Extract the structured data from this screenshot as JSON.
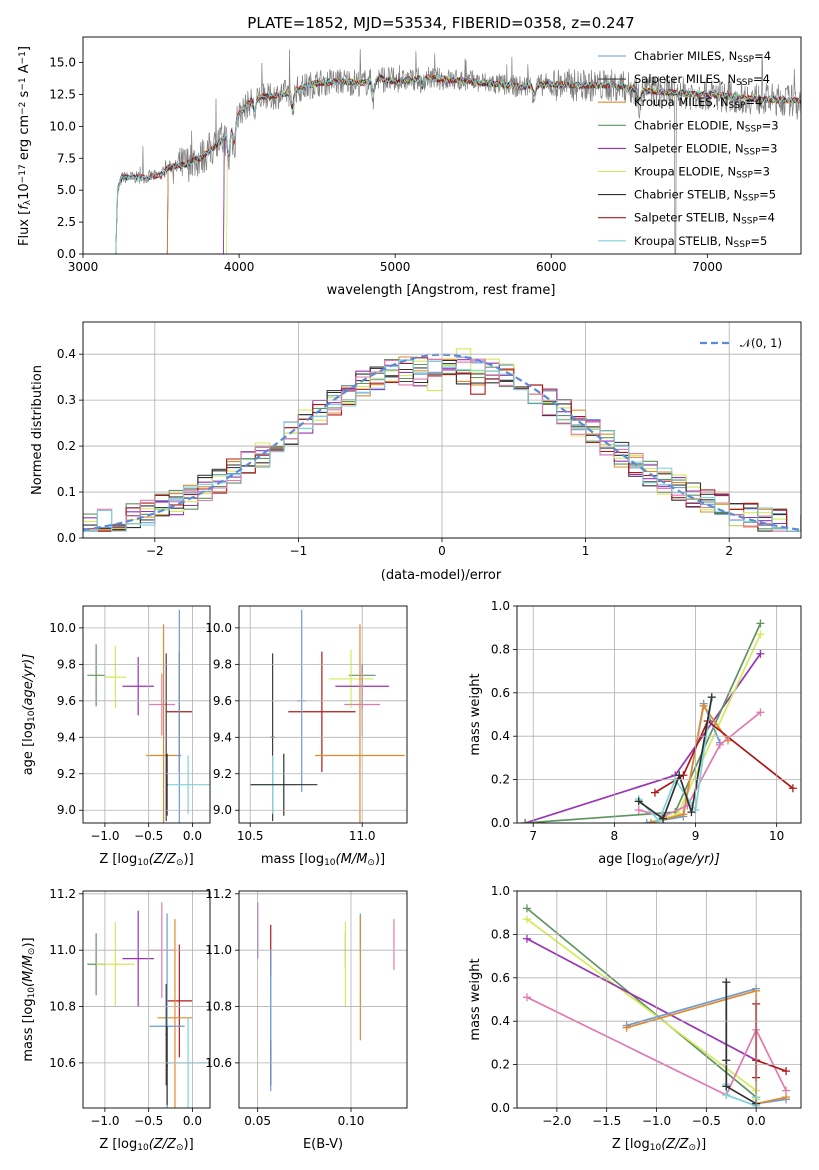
{
  "colors": {
    "Chabrier MILES": "#6a9bd8",
    "Salpeter MILES": "#404040",
    "Kroupa MILES": "#e08a2c",
    "Chabrier ELODIE": "#5f9460",
    "Salpeter ELODIE": "#9933b5",
    "Kroupa ELODIE": "#d4ea5a",
    "Chabrier STELIB": "#303030",
    "Salpeter STELIB": "#b01818",
    "Kroupa STELIB": "#7dd4d8",
    "stelib_pink": "#e37aaf",
    "data": "#808080",
    "normal": "#5b8bd6"
  },
  "chart_data": [
    {
      "id": "spectrum",
      "type": "line",
      "title": "PLATE=1852, MJD=53534, FIBERID=0358, z=0.247",
      "xlabel": "wavelength [Angstrom, rest frame]",
      "ylabel_parts": [
        "Flux [",
        "f",
        "λ",
        "10",
        "−17",
        " erg cm",
        "−2",
        " s",
        "−1",
        " A",
        "−1",
        "]"
      ],
      "xlim": [
        3000,
        7600
      ],
      "ylim": [
        0,
        17
      ],
      "xticks": [
        3000,
        4000,
        5000,
        6000,
        7000
      ],
      "yticks": [
        "0.0",
        "2.5",
        "5.0",
        "7.5",
        "10.0",
        "12.5",
        "15.0"
      ],
      "ytick_values": [
        0,
        2.5,
        5,
        7.5,
        10,
        12.5,
        15
      ],
      "legend": [
        {
          "name": "Chabrier MILES",
          "nssp": "4"
        },
        {
          "name": "Salpeter MILES",
          "nssp": "4"
        },
        {
          "name": "Kroupa MILES",
          "nssp": "4"
        },
        {
          "name": "Chabrier ELODIE",
          "nssp": "3"
        },
        {
          "name": "Salpeter ELODIE",
          "nssp": "3"
        },
        {
          "name": "Kroupa ELODIE",
          "nssp": "3"
        },
        {
          "name": "Chabrier STELIB",
          "nssp": "5"
        },
        {
          "name": "Salpeter STELIB",
          "nssp": "4"
        },
        {
          "name": "Kroupa STELIB",
          "nssp": "5"
        }
      ],
      "legend_prefix": "N",
      "legend_sub": "SSP",
      "legend_position": "upper-right",
      "continuum": [
        [
          3210,
          0
        ],
        [
          3220,
          5
        ],
        [
          3250,
          6
        ],
        [
          3300,
          6
        ],
        [
          3400,
          6
        ],
        [
          3500,
          6.2
        ],
        [
          3550,
          6.8
        ],
        [
          3650,
          7
        ],
        [
          3750,
          7.5
        ],
        [
          3850,
          8.5
        ],
        [
          3900,
          9
        ],
        [
          3950,
          10
        ],
        [
          4000,
          11
        ],
        [
          4100,
          12.3
        ],
        [
          4200,
          12.3
        ],
        [
          4300,
          12.6
        ],
        [
          4400,
          13
        ],
        [
          4500,
          13.4
        ],
        [
          4600,
          13.5
        ],
        [
          4700,
          13.5
        ],
        [
          4800,
          13.4
        ],
        [
          4900,
          13.8
        ],
        [
          5000,
          13.5
        ],
        [
          5200,
          13.8
        ],
        [
          5500,
          13.5
        ],
        [
          5800,
          13.1
        ],
        [
          6000,
          13.3
        ],
        [
          6200,
          13.2
        ],
        [
          6400,
          13.2
        ],
        [
          6600,
          12.8
        ],
        [
          6800,
          12.6
        ],
        [
          7000,
          12.5
        ],
        [
          7200,
          12.3
        ],
        [
          7400,
          12.1
        ],
        [
          7600,
          12.0
        ]
      ]
    },
    {
      "id": "residuals",
      "type": "step",
      "xlabel": "(data-model)/error",
      "ylabel": "Normed distribution",
      "xlim": [
        -2.5,
        2.5
      ],
      "ylim": [
        0,
        0.47
      ],
      "xticks": [
        "−2",
        "−1",
        "0",
        "1",
        "2"
      ],
      "xtick_values": [
        -2,
        -1,
        0,
        1,
        2
      ],
      "yticks": [
        "0.0",
        "0.1",
        "0.2",
        "0.3",
        "0.4"
      ],
      "ytick_values": [
        0,
        0.1,
        0.2,
        0.3,
        0.4
      ],
      "legend": [
        {
          "name": "𝒩(0, 1)"
        }
      ],
      "legend_position": "upper-right",
      "grid": true
    },
    {
      "id": "age_vs_Z",
      "type": "errorbar",
      "xlabel_parts": [
        "Z [log",
        "10",
        "(Z/Z",
        "⊙",
        ")]"
      ],
      "ylabel_parts": [
        "age  [log",
        "10",
        "(age/yr)]"
      ],
      "xlim": [
        -1.25,
        0.2
      ],
      "ylim": [
        8.93,
        10.12
      ],
      "xticks": [
        "−1.0",
        "−0.5",
        "0.0"
      ],
      "xtick_values": [
        -1.0,
        -0.5,
        0.0
      ],
      "yticks": [
        "9.0",
        "9.2",
        "9.4",
        "9.6",
        "9.8",
        "10.0"
      ],
      "ytick_values": [
        9.0,
        9.2,
        9.4,
        9.6,
        9.8,
        10.0
      ],
      "points": [
        {
          "c": "Chabrier ELODIE",
          "x": -1.1,
          "y": 9.74,
          "xerr": 0.1,
          "yerr": 0.17
        },
        {
          "c": "Kroupa ELODIE",
          "x": -0.88,
          "y": 9.73,
          "xerr": 0.12,
          "yerr": 0.17
        },
        {
          "c": "Salpeter ELODIE",
          "x": -0.62,
          "y": 9.68,
          "xerr": 0.18,
          "yerr": 0.16
        },
        {
          "c": "stelib_pink",
          "x": -0.35,
          "y": 9.58,
          "xerr": 0.15,
          "yerr": 0.17
        },
        {
          "c": "Salpeter STELIB",
          "x": -0.15,
          "y": 9.54,
          "xerr": 0.15,
          "yerr": 0.33
        },
        {
          "c": "Kroupa MILES",
          "x": -0.33,
          "y": 9.3,
          "xerr": 0.2,
          "yerr": 0.72
        },
        {
          "c": "Chabrier MILES",
          "x": -0.15,
          "y": 9.3,
          "xerr": 0.02,
          "yerr": 0.8
        },
        {
          "c": "Salpeter MILES",
          "x": -0.3,
          "y": 9.4,
          "xerr": 0.01,
          "yerr": 0.46
        },
        {
          "c": "Kroupa STELIB",
          "x": -0.05,
          "y": 9.14,
          "xerr": 0.25,
          "yerr": 0.16
        },
        {
          "c": "Chabrier STELIB",
          "x": -0.29,
          "y": 9.14,
          "xerr": 0.01,
          "yerr": 0.17
        }
      ]
    },
    {
      "id": "age_vs_mass",
      "type": "errorbar",
      "xlabel_parts": [
        "mass [log",
        "10",
        "(M/M",
        "⊙",
        ")]"
      ],
      "xlim": [
        10.45,
        11.2
      ],
      "ylim": [
        8.93,
        10.12
      ],
      "xticks": [
        "10.5",
        "11.0"
      ],
      "xtick_values": [
        10.5,
        11.0
      ],
      "yticks": [
        "9.0",
        "9.2",
        "9.4",
        "9.6",
        "9.8",
        "10.0"
      ],
      "ytick_values": [
        9.0,
        9.2,
        9.4,
        9.6,
        9.8,
        10.0
      ],
      "points": [
        {
          "c": "Chabrier ELODIE",
          "x": 11.0,
          "y": 9.74,
          "xerr": 0.06,
          "yerr": 0.06
        },
        {
          "c": "Kroupa ELODIE",
          "x": 10.95,
          "y": 9.72,
          "xerr": 0.1,
          "yerr": 0.16
        },
        {
          "c": "Salpeter ELODIE",
          "x": 11.0,
          "y": 9.68,
          "xerr": 0.12,
          "yerr": 0.12
        },
        {
          "c": "stelib_pink",
          "x": 11.0,
          "y": 9.58,
          "xerr": 0.08,
          "yerr": 0.17
        },
        {
          "c": "Salpeter STELIB",
          "x": 10.82,
          "y": 9.54,
          "xerr": 0.15,
          "yerr": 0.33
        },
        {
          "c": "Kroupa MILES",
          "x": 10.99,
          "y": 9.3,
          "xerr": 0.2,
          "yerr": 0.72
        },
        {
          "c": "Chabrier MILES",
          "x": 10.73,
          "y": 9.6,
          "xerr": 0.02,
          "yerr": 0.5
        },
        {
          "c": "Salpeter MILES",
          "x": 10.6,
          "y": 9.4,
          "xerr": 0.01,
          "yerr": 0.46
        },
        {
          "c": "Kroupa STELIB",
          "x": 10.6,
          "y": 9.14,
          "xerr": 0.1,
          "yerr": 0.16
        },
        {
          "c": "Chabrier STELIB",
          "x": 10.65,
          "y": 9.14,
          "xerr": 0.15,
          "yerr": 0.17
        }
      ]
    },
    {
      "id": "weight_vs_age",
      "type": "line",
      "xlabel_parts": [
        "age  [log",
        "10",
        "(age/yr)]"
      ],
      "ylabel": "mass weight",
      "xlim": [
        6.8,
        10.3
      ],
      "ylim": [
        0,
        1
      ],
      "xticks": [
        "7",
        "8",
        "9",
        "10"
      ],
      "xtick_values": [
        7,
        8,
        9,
        10
      ],
      "yticks": [
        "0.0",
        "0.2",
        "0.4",
        "0.6",
        "0.8",
        "1.0"
      ],
      "ytick_values": [
        0,
        0.2,
        0.4,
        0.6,
        0.8,
        1.0
      ],
      "grid": true,
      "series": [
        {
          "c": "Salpeter ELODIE",
          "x": [
            6.9,
            8.75,
            9.8
          ],
          "y": [
            0,
            0.22,
            0.78
          ]
        },
        {
          "c": "Chabrier ELODIE",
          "x": [
            6.9,
            8.75,
            9.8
          ],
          "y": [
            0,
            0.05,
            0.92
          ]
        },
        {
          "c": "Kroupa ELODIE",
          "x": [
            8.4,
            8.78,
            9.8
          ],
          "y": [
            0,
            0.04,
            0.87
          ]
        },
        {
          "c": "Chabrier MILES",
          "x": [
            8.4,
            8.85,
            9.1,
            9.3
          ],
          "y": [
            0,
            0.03,
            0.55,
            0.37
          ]
        },
        {
          "c": "Kroupa MILES",
          "x": [
            8.45,
            8.85,
            9.1,
            9.4
          ],
          "y": [
            0,
            0.04,
            0.54,
            0.38
          ]
        },
        {
          "c": "Salpeter STELIB",
          "x": [
            8.5,
            8.85,
            9.15,
            10.2
          ],
          "y": [
            0.14,
            0.22,
            0.47,
            0.16
          ]
        },
        {
          "c": "stelib_pink",
          "x": [
            8.3,
            8.6,
            8.9,
            9.3,
            9.8
          ],
          "y": [
            0.06,
            0.03,
            0.08,
            0.36,
            0.51
          ]
        },
        {
          "c": "Kroupa STELIB",
          "x": [
            8.3,
            8.55,
            8.75,
            9.0,
            9.2
          ],
          "y": [
            0.11,
            0.01,
            0.2,
            0.06,
            0.58
          ]
        },
        {
          "c": "Chabrier STELIB",
          "x": [
            8.3,
            8.6,
            8.8,
            8.95,
            9.2
          ],
          "y": [
            0.1,
            0.02,
            0.22,
            0.05,
            0.58
          ]
        }
      ]
    },
    {
      "id": "mass_vs_Z",
      "type": "errorbar",
      "xlabel_parts": [
        "Z [log",
        "10",
        "(Z/Z",
        "⊙",
        ")]"
      ],
      "ylabel_parts": [
        "mass [log",
        "10",
        "(M/M",
        "⊙",
        ")]"
      ],
      "xlim": [
        -1.25,
        0.2
      ],
      "ylim": [
        10.44,
        11.21
      ],
      "xticks": [
        "−1.0",
        "−0.5",
        "0.0"
      ],
      "xtick_values": [
        -1.0,
        -0.5,
        0.0
      ],
      "yticks": [
        "10.6",
        "10.8",
        "11.0",
        "11.2"
      ],
      "ytick_values": [
        10.6,
        10.8,
        11.0,
        11.2
      ],
      "points": [
        {
          "c": "Chabrier ELODIE",
          "x": -1.1,
          "y": 10.95,
          "xerr": 0.1,
          "yerr": 0.11
        },
        {
          "c": "Kroupa ELODIE",
          "x": -0.88,
          "y": 10.95,
          "xerr": 0.22,
          "yerr": 0.15
        },
        {
          "c": "Salpeter ELODIE",
          "x": -0.62,
          "y": 10.97,
          "xerr": 0.18,
          "yerr": 0.17
        },
        {
          "c": "stelib_pink",
          "x": -0.35,
          "y": 11.0,
          "xerr": 0.15,
          "yerr": 0.17
        },
        {
          "c": "Salpeter STELIB",
          "x": -0.15,
          "y": 10.82,
          "xerr": 0.15,
          "yerr": 0.2
        },
        {
          "c": "Kroupa MILES",
          "x": -0.2,
          "y": 10.76,
          "xerr": 0.2,
          "yerr": 0.35
        },
        {
          "c": "Chabrier MILES",
          "x": -0.29,
          "y": 10.73,
          "xerr": 0.2,
          "yerr": 0.4
        },
        {
          "c": "Salpeter MILES",
          "x": -0.3,
          "y": 10.7,
          "xerr": 0.01,
          "yerr": 0.18
        },
        {
          "c": "Kroupa STELIB",
          "x": -0.05,
          "y": 10.6,
          "xerr": 0.25,
          "yerr": 0.16
        },
        {
          "c": "Chabrier STELIB",
          "x": -0.29,
          "y": 10.59,
          "xerr": 0.01,
          "yerr": 0.14
        }
      ]
    },
    {
      "id": "mass_vs_ebv",
      "type": "errorbar",
      "xlabel": "E(B-V)",
      "xlim": [
        0.04,
        0.13
      ],
      "ylim": [
        10.44,
        11.21
      ],
      "xticks": [
        "0.05",
        "0.10"
      ],
      "xtick_values": [
        0.05,
        0.1
      ],
      "yticks": [
        "10.6",
        "10.8",
        "11.0",
        "11.2"
      ],
      "ytick_values": [
        10.6,
        10.8,
        11.0,
        11.2
      ],
      "points": [
        {
          "c": "Salpeter ELODIE",
          "x": 0.05,
          "y": 11.07,
          "xerr": 0,
          "yerr": 0.1
        },
        {
          "c": "Salpeter STELIB",
          "x": 0.057,
          "y": 11.0,
          "xerr": 0,
          "yerr": 0.09
        },
        {
          "c": "Kroupa STELIB",
          "x": 0.057,
          "y": 10.73,
          "xerr": 0,
          "yerr": 0.18
        },
        {
          "c": "Chabrier STELIB",
          "x": 0.057,
          "y": 10.6,
          "xerr": 0,
          "yerr": 0.08
        },
        {
          "c": "Chabrier MILES",
          "x": 0.057,
          "y": 10.75,
          "xerr": 0,
          "yerr": 0.25
        },
        {
          "c": "Chabrier ELODIE",
          "x": 0.097,
          "y": 11.0,
          "xerr": 0,
          "yerr": 0.06
        },
        {
          "c": "Kroupa ELODIE",
          "x": 0.097,
          "y": 10.95,
          "xerr": 0,
          "yerr": 0.15
        },
        {
          "c": "Chabrier MILES",
          "x": 0.105,
          "y": 11.06,
          "xerr": 0,
          "yerr": 0.07
        },
        {
          "c": "Kroupa MILES",
          "x": 0.105,
          "y": 10.9,
          "xerr": 0,
          "yerr": 0.22
        },
        {
          "c": "stelib_pink",
          "x": 0.123,
          "y": 11.02,
          "xerr": 0,
          "yerr": 0.09
        }
      ]
    },
    {
      "id": "weight_vs_Z",
      "type": "line",
      "xlabel_parts": [
        "Z [log",
        "10",
        "(Z/Z",
        "⊙",
        ")]"
      ],
      "ylabel": "mass weight",
      "xlim": [
        -2.4,
        0.45
      ],
      "ylim": [
        0,
        1
      ],
      "xticks": [
        "−2.0",
        "−1.5",
        "−1.0",
        "−0.5",
        "0.0"
      ],
      "xtick_values": [
        -2.0,
        -1.5,
        -1.0,
        -0.5,
        0.0
      ],
      "yticks": [
        "0.0",
        "0.2",
        "0.4",
        "0.6",
        "0.8",
        "1.0"
      ],
      "ytick_values": [
        0,
        0.2,
        0.4,
        0.6,
        0.8,
        1.0
      ],
      "grid": true,
      "series": [
        {
          "c": "Chabrier ELODIE",
          "x": [
            -2.3,
            0.0,
            0.0
          ],
          "y": [
            0.92,
            0.05,
            0.02
          ]
        },
        {
          "c": "Kroupa ELODIE",
          "x": [
            -2.3,
            0.0,
            0.0
          ],
          "y": [
            0.87,
            0.08,
            0.04
          ]
        },
        {
          "c": "Salpeter ELODIE",
          "x": [
            -2.3,
            0.0
          ],
          "y": [
            0.78,
            0.22
          ]
        },
        {
          "c": "stelib_pink",
          "x": [
            -2.3,
            -0.3,
            0.0,
            0.3
          ],
          "y": [
            0.51,
            0.06,
            0.36,
            0.08
          ]
        },
        {
          "c": "Chabrier MILES",
          "x": [
            -1.3,
            0.0,
            0.0,
            0.3
          ],
          "y": [
            0.38,
            0.55,
            0.02,
            0.04
          ]
        },
        {
          "c": "Kroupa MILES",
          "x": [
            -1.3,
            0.0,
            0.0,
            0.3
          ],
          "y": [
            0.37,
            0.54,
            0.02,
            0.05
          ]
        },
        {
          "c": "Salpeter STELIB",
          "x": [
            0.0,
            0.0,
            0.0,
            0.3
          ],
          "y": [
            0.48,
            0.14,
            0.22,
            0.17
          ]
        },
        {
          "c": "Kroupa STELIB",
          "x": [
            -0.3,
            -0.3,
            -0.3,
            0.0,
            0.0
          ],
          "y": [
            0.58,
            0.11,
            0.06,
            0.01,
            0.05
          ]
        },
        {
          "c": "Chabrier STELIB",
          "x": [
            -0.3,
            -0.3,
            -0.3,
            0.0
          ],
          "y": [
            0.58,
            0.22,
            0.1,
            0.02
          ]
        }
      ]
    }
  ]
}
